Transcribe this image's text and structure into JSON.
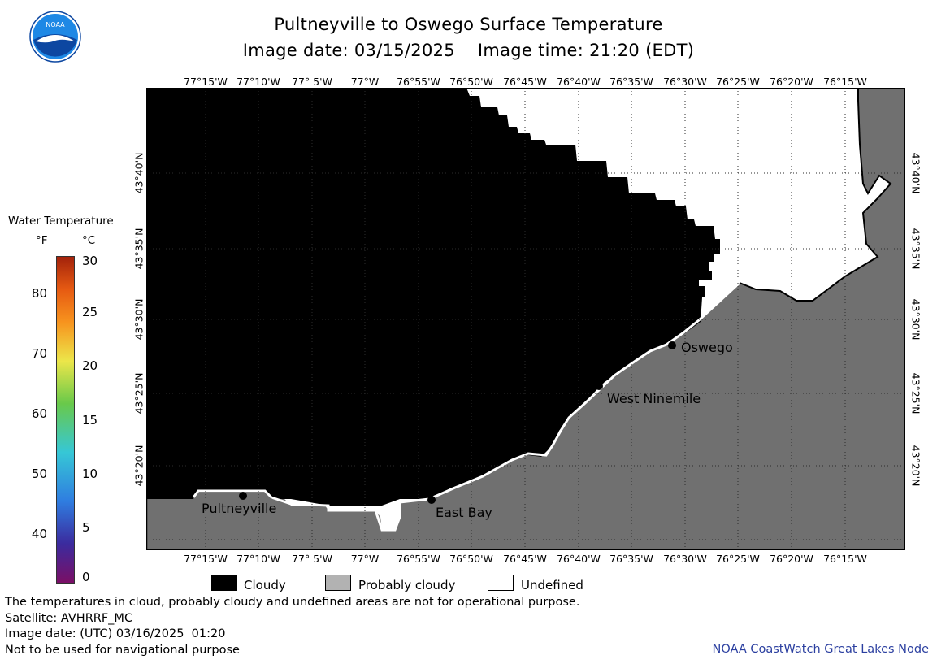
{
  "header": {
    "title": "Pultneyville to Oswego Surface Temperature",
    "date_line": "Image date: 03/15/2025    Image time: 21:20 (EDT)"
  },
  "logo": {
    "text": "NOAA",
    "colors": {
      "sky": "#1e88e5",
      "gull": "#ffffff",
      "sea": "#0d47a1"
    }
  },
  "map": {
    "colors": {
      "cloudy": "#000000",
      "probably_cloudy": "#b2b2b2",
      "land": "#707070",
      "undefined": "#ffffff",
      "grid": "#2b2b2b",
      "frame": "#000000"
    },
    "longitude_labels": [
      "77°15'W",
      "77°10'W",
      "77° 5'W",
      "77°W",
      "76°55'W",
      "76°50'W",
      "76°45'W",
      "76°40'W",
      "76°35'W",
      "76°30'W",
      "76°25'W",
      "76°20'W",
      "76°15'W"
    ],
    "latitude_labels": [
      "43°40'N",
      "43°35'N",
      "43°30'N",
      "43°25'N",
      "43°20'N"
    ],
    "places": [
      {
        "name": "Oswego"
      },
      {
        "name": "West Ninemile"
      },
      {
        "name": "Pultneyville"
      },
      {
        "name": "East Bay"
      }
    ]
  },
  "color_legend": {
    "title": "Water Temperature",
    "unit_f": "°F",
    "unit_c": "°C",
    "fahrenheit_ticks": [
      "80",
      "70",
      "60",
      "50",
      "40"
    ],
    "celsius_ticks": [
      "30",
      "25",
      "20",
      "15",
      "10",
      "5",
      "0"
    ],
    "colors": [
      "#7a0f66",
      "#3b2b9e",
      "#2f7de0",
      "#36c7d6",
      "#69c94a",
      "#ece64a",
      "#f7931e",
      "#e65a12",
      "#a3220b"
    ]
  },
  "key": {
    "cloudy": "Cloudy",
    "probably_cloudy": "Probably cloudy",
    "undefined": "Undefined"
  },
  "footer": {
    "disclaimer": "The temperatures in cloud, probably cloudy and undefined areas are not for operational purpose.",
    "satellite": "Satellite: AVHRRF_MC",
    "utc_date": "Image date: (UTC) 03/16/2025  01:20",
    "nav_warning": "Not to be used for navigational purpose",
    "credit": "NOAA CoastWatch Great Lakes Node"
  }
}
